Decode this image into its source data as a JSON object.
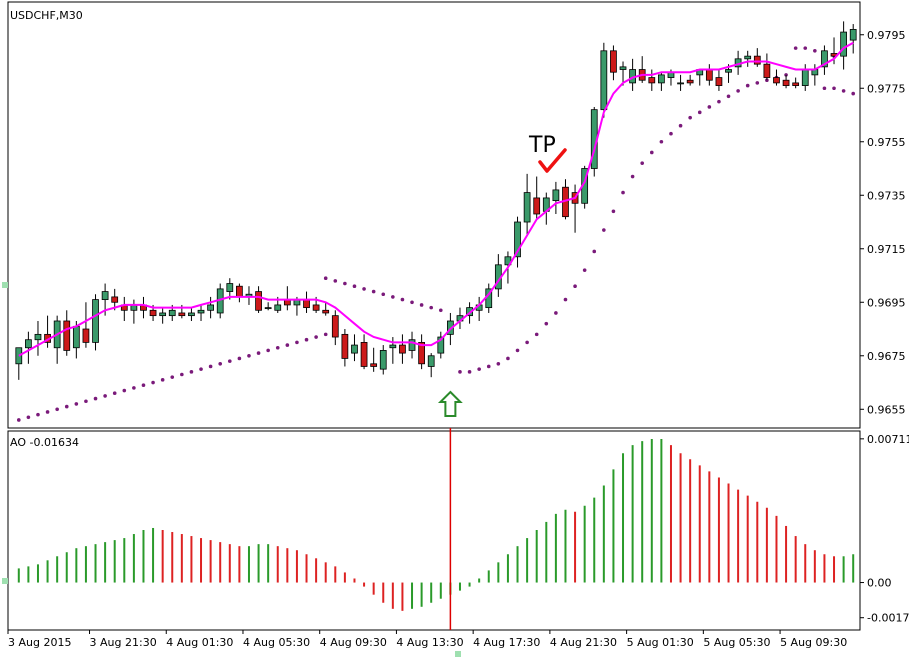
{
  "window": {
    "symbol_label": "USDCHF,M30"
  },
  "ao": {
    "label": "AO -0.01634"
  },
  "annotations": {
    "tp_label": "TP"
  },
  "colors": {
    "bull_candle": "#3a9a6a",
    "bear_candle": "#cc1a1a",
    "candle_outline": "#000000",
    "ma_line": "#ff00ff",
    "sar_dots": "#7a1a7a",
    "ao_up": "#2a9a2a",
    "ao_down": "#dd2222",
    "vline": "#dd0000",
    "arrow": "#2a8a2a",
    "check": "#ee1111"
  },
  "chart_data": [
    {
      "type": "candlestick",
      "title": "USDCHF,M30",
      "y_ticks": [
        "0.9795",
        "0.9775",
        "0.9755",
        "0.9735",
        "0.9715",
        "0.9695",
        "0.9675",
        "0.9655"
      ],
      "ylim": [
        0.9648,
        0.9805
      ],
      "x_ticks": [
        "3 Aug 2015",
        "3 Aug 21:30",
        "4 Aug 01:30",
        "4 Aug 05:30",
        "4 Aug 09:30",
        "4 Aug 13:30",
        "4 Aug 17:30",
        "4 Aug 21:30",
        "5 Aug 01:30",
        "5 Aug 05:30",
        "5 Aug 09:30"
      ],
      "ohlc": [
        [
          0.9672,
          0.9678,
          0.9666,
          0.9678
        ],
        [
          0.9678,
          0.9684,
          0.9672,
          0.9681
        ],
        [
          0.9681,
          0.9688,
          0.9675,
          0.9683
        ],
        [
          0.9683,
          0.969,
          0.9678,
          0.968
        ],
        [
          0.9678,
          0.969,
          0.9672,
          0.9688
        ],
        [
          0.9688,
          0.9692,
          0.9675,
          0.9677
        ],
        [
          0.9678,
          0.9688,
          0.9674,
          0.9686
        ],
        [
          0.9685,
          0.9695,
          0.9678,
          0.968
        ],
        [
          0.968,
          0.9698,
          0.9677,
          0.9696
        ],
        [
          0.9696,
          0.9702,
          0.969,
          0.9699
        ],
        [
          0.9697,
          0.97,
          0.9692,
          0.9695
        ],
        [
          0.9694,
          0.9697,
          0.9688,
          0.9692
        ],
        [
          0.9692,
          0.9696,
          0.9687,
          0.9694
        ],
        [
          0.9694,
          0.9697,
          0.9689,
          0.9692
        ],
        [
          0.9692,
          0.9694,
          0.9688,
          0.969
        ],
        [
          0.969,
          0.9693,
          0.9687,
          0.9691
        ],
        [
          0.969,
          0.9694,
          0.9688,
          0.9692
        ],
        [
          0.9691,
          0.9694,
          0.9689,
          0.969
        ],
        [
          0.969,
          0.9693,
          0.9688,
          0.9691
        ],
        [
          0.9691,
          0.9694,
          0.9688,
          0.9692
        ],
        [
          0.9692,
          0.9697,
          0.9689,
          0.9694
        ],
        [
          0.9691,
          0.9702,
          0.9689,
          0.97
        ],
        [
          0.9699,
          0.9704,
          0.9696,
          0.9702
        ],
        [
          0.9701,
          0.9702,
          0.9695,
          0.9697
        ],
        [
          0.9697,
          0.9701,
          0.9694,
          0.9698
        ],
        [
          0.9699,
          0.9701,
          0.9691,
          0.9692
        ],
        [
          0.9693,
          0.9695,
          0.9692,
          0.9693
        ],
        [
          0.9692,
          0.9697,
          0.9691,
          0.9694
        ],
        [
          0.9696,
          0.9701,
          0.9692,
          0.9694
        ],
        [
          0.9694,
          0.9697,
          0.969,
          0.9696
        ],
        [
          0.9696,
          0.9699,
          0.9691,
          0.9693
        ],
        [
          0.9694,
          0.9697,
          0.9691,
          0.9692
        ],
        [
          0.9692,
          0.9695,
          0.969,
          0.9691
        ],
        [
          0.969,
          0.9692,
          0.9679,
          0.9682
        ],
        [
          0.9683,
          0.9685,
          0.9671,
          0.9674
        ],
        [
          0.9676,
          0.9683,
          0.9673,
          0.9679
        ],
        [
          0.968,
          0.9683,
          0.967,
          0.9671
        ],
        [
          0.9672,
          0.9678,
          0.9669,
          0.9671
        ],
        [
          0.967,
          0.9679,
          0.9668,
          0.9677
        ],
        [
          0.9678,
          0.9682,
          0.9672,
          0.9679
        ],
        [
          0.9679,
          0.9683,
          0.9672,
          0.9676
        ],
        [
          0.9677,
          0.9684,
          0.9674,
          0.9681
        ],
        [
          0.968,
          0.9683,
          0.967,
          0.9672
        ],
        [
          0.9671,
          0.9676,
          0.9667,
          0.9675
        ],
        [
          0.9676,
          0.9684,
          0.9674,
          0.9682
        ],
        [
          0.9683,
          0.9691,
          0.9679,
          0.9688
        ],
        [
          0.9688,
          0.9693,
          0.9685,
          0.969
        ],
        [
          0.969,
          0.9695,
          0.9687,
          0.9693
        ],
        [
          0.9692,
          0.9697,
          0.9688,
          0.9694
        ],
        [
          0.9693,
          0.9702,
          0.9691,
          0.97
        ],
        [
          0.97,
          0.9713,
          0.9697,
          0.9709
        ],
        [
          0.9709,
          0.9714,
          0.9702,
          0.9712
        ],
        [
          0.9712,
          0.9727,
          0.9708,
          0.9725
        ],
        [
          0.9725,
          0.9743,
          0.972,
          0.9736
        ],
        [
          0.9734,
          0.9742,
          0.9726,
          0.9728
        ],
        [
          0.9729,
          0.9736,
          0.9724,
          0.9734
        ],
        [
          0.9733,
          0.974,
          0.9728,
          0.9737
        ],
        [
          0.9738,
          0.9741,
          0.9726,
          0.9727
        ],
        [
          0.9736,
          0.9739,
          0.9721,
          0.9732
        ],
        [
          0.9732,
          0.9746,
          0.973,
          0.9745
        ],
        [
          0.9745,
          0.9768,
          0.9742,
          0.9767
        ],
        [
          0.9767,
          0.9792,
          0.9764,
          0.9789
        ],
        [
          0.9789,
          0.9791,
          0.9778,
          0.9781
        ],
        [
          0.9782,
          0.9785,
          0.9776,
          0.9783
        ],
        [
          0.9777,
          0.9786,
          0.9774,
          0.9782
        ],
        [
          0.9782,
          0.9787,
          0.9777,
          0.9778
        ],
        [
          0.9779,
          0.9782,
          0.9774,
          0.9777
        ],
        [
          0.9777,
          0.9781,
          0.9774,
          0.978
        ],
        [
          0.9779,
          0.9782,
          0.9776,
          0.9781
        ],
        [
          0.9777,
          0.978,
          0.9774,
          0.9777
        ],
        [
          0.9778,
          0.978,
          0.9776,
          0.9777
        ],
        [
          0.978,
          0.9782,
          0.9776,
          0.9782
        ],
        [
          0.9782,
          0.9784,
          0.9776,
          0.9778
        ],
        [
          0.9779,
          0.9782,
          0.9774,
          0.9776
        ],
        [
          0.9781,
          0.9784,
          0.9777,
          0.9782
        ],
        [
          0.9783,
          0.9789,
          0.978,
          0.9786
        ],
        [
          0.9786,
          0.9789,
          0.9783,
          0.9787
        ],
        [
          0.9787,
          0.979,
          0.9783,
          0.9784
        ],
        [
          0.9784,
          0.9788,
          0.9778,
          0.9779
        ],
        [
          0.9779,
          0.9782,
          0.9776,
          0.9777
        ],
        [
          0.9778,
          0.978,
          0.9775,
          0.9776
        ],
        [
          0.9777,
          0.9779,
          0.9775,
          0.9776
        ],
        [
          0.9776,
          0.9784,
          0.9774,
          0.9782
        ],
        [
          0.978,
          0.9784,
          0.9776,
          0.9782
        ],
        [
          0.9783,
          0.9791,
          0.978,
          0.9789
        ],
        [
          0.9788,
          0.9794,
          0.9784,
          0.9787
        ],
        [
          0.9787,
          0.98,
          0.9782,
          0.9796
        ],
        [
          0.9793,
          0.9799,
          0.9788,
          0.9797
        ]
      ],
      "moving_average": [
        0.9675,
        0.9677,
        0.9679,
        0.9681,
        0.9683,
        0.9685,
        0.9686,
        0.9688,
        0.969,
        0.9692,
        0.9693,
        0.9694,
        0.9694,
        0.9694,
        0.9693,
        0.9693,
        0.9693,
        0.9693,
        0.9693,
        0.9694,
        0.9695,
        0.9696,
        0.9697,
        0.9697,
        0.9697,
        0.9697,
        0.9696,
        0.9696,
        0.9696,
        0.9696,
        0.9696,
        0.9696,
        0.9695,
        0.9693,
        0.969,
        0.9687,
        0.9684,
        0.9682,
        0.9681,
        0.968,
        0.968,
        0.968,
        0.9679,
        0.9679,
        0.9681,
        0.9685,
        0.9688,
        0.9691,
        0.9694,
        0.9698,
        0.9703,
        0.9708,
        0.9714,
        0.972,
        0.9726,
        0.9729,
        0.9732,
        0.9733,
        0.9734,
        0.974,
        0.9752,
        0.9766,
        0.9773,
        0.9777,
        0.9779,
        0.978,
        0.978,
        0.9781,
        0.9781,
        0.9781,
        0.9781,
        0.9782,
        0.9782,
        0.9782,
        0.9783,
        0.9784,
        0.9785,
        0.9785,
        0.9785,
        0.9784,
        0.9783,
        0.9782,
        0.9782,
        0.9782,
        0.9784,
        0.9786,
        0.979,
        0.9792
      ],
      "parabolic_sar": [
        [
          0,
          0.9651
        ],
        [
          1,
          0.9652
        ],
        [
          2,
          0.9653
        ],
        [
          3,
          0.9654
        ],
        [
          4,
          0.9655
        ],
        [
          5,
          0.9656
        ],
        [
          6,
          0.9657
        ],
        [
          7,
          0.9658
        ],
        [
          8,
          0.9659
        ],
        [
          9,
          0.966
        ],
        [
          10,
          0.9661
        ],
        [
          11,
          0.9662
        ],
        [
          12,
          0.9663
        ],
        [
          13,
          0.9664
        ],
        [
          14,
          0.9665
        ],
        [
          15,
          0.9666
        ],
        [
          16,
          0.9667
        ],
        [
          17,
          0.9668
        ],
        [
          18,
          0.9669
        ],
        [
          19,
          0.967
        ],
        [
          20,
          0.9671
        ],
        [
          21,
          0.9672
        ],
        [
          22,
          0.9673
        ],
        [
          23,
          0.9674
        ],
        [
          24,
          0.9675
        ],
        [
          25,
          0.9676
        ],
        [
          26,
          0.9677
        ],
        [
          27,
          0.9678
        ],
        [
          28,
          0.9679
        ],
        [
          29,
          0.968
        ],
        [
          30,
          0.9681
        ],
        [
          31,
          0.9682
        ],
        [
          32,
          0.9683
        ],
        [
          32,
          0.9704
        ],
        [
          33,
          0.9703
        ],
        [
          34,
          0.9702
        ],
        [
          35,
          0.9701
        ],
        [
          36,
          0.97
        ],
        [
          37,
          0.9699
        ],
        [
          38,
          0.9698
        ],
        [
          39,
          0.9697
        ],
        [
          40,
          0.9696
        ],
        [
          41,
          0.9695
        ],
        [
          42,
          0.9694
        ],
        [
          43,
          0.9693
        ],
        [
          44,
          0.9692
        ],
        [
          46,
          0.9669
        ],
        [
          47,
          0.9669
        ],
        [
          48,
          0.967
        ],
        [
          49,
          0.9671
        ],
        [
          50,
          0.9672
        ],
        [
          51,
          0.9674
        ],
        [
          52,
          0.9677
        ],
        [
          53,
          0.968
        ],
        [
          54,
          0.9683
        ],
        [
          55,
          0.9687
        ],
        [
          56,
          0.9691
        ],
        [
          57,
          0.9696
        ],
        [
          58,
          0.9701
        ],
        [
          59,
          0.9707
        ],
        [
          60,
          0.9714
        ],
        [
          61,
          0.9722
        ],
        [
          62,
          0.9729
        ],
        [
          63,
          0.9736
        ],
        [
          64,
          0.9742
        ],
        [
          65,
          0.9747
        ],
        [
          66,
          0.9751
        ],
        [
          67,
          0.9755
        ],
        [
          68,
          0.9758
        ],
        [
          69,
          0.9761
        ],
        [
          70,
          0.9764
        ],
        [
          71,
          0.9766
        ],
        [
          72,
          0.9768
        ],
        [
          73,
          0.977
        ],
        [
          74,
          0.9772
        ],
        [
          75,
          0.9774
        ],
        [
          76,
          0.9776
        ],
        [
          77,
          0.9777
        ],
        [
          78,
          0.9778
        ],
        [
          79,
          0.9779
        ],
        [
          80,
          0.978
        ],
        [
          81,
          0.979
        ],
        [
          82,
          0.979
        ],
        [
          83,
          0.9789
        ],
        [
          84,
          0.9788
        ],
        [
          85,
          0.9787
        ],
        [
          84,
          0.9775
        ],
        [
          85,
          0.9775
        ],
        [
          86,
          0.9774
        ],
        [
          87,
          0.9773
        ]
      ]
    },
    {
      "type": "bar",
      "title": "AO -0.01634",
      "y_ticks": [
        "0.00711",
        "0.00",
        "-0.00174"
      ],
      "ylim": [
        -0.00215,
        0.0073
      ],
      "values": [
        0.0007,
        0.0008,
        0.0009,
        0.0011,
        0.0013,
        0.0015,
        0.0017,
        0.0018,
        0.0019,
        0.002,
        0.0021,
        0.0022,
        0.0024,
        0.0026,
        0.0027,
        0.0026,
        0.0025,
        0.0024,
        0.0023,
        0.0022,
        0.0021,
        0.002,
        0.0019,
        0.0018,
        0.0018,
        0.0019,
        0.0019,
        0.0018,
        0.0017,
        0.0016,
        0.0014,
        0.0012,
        0.001,
        0.0008,
        0.0005,
        0.0002,
        -0.0002,
        -0.0006,
        -0.001,
        -0.0013,
        -0.0014,
        -0.0013,
        -0.0012,
        -0.001,
        -0.0008,
        -0.0006,
        -0.0004,
        -0.0002,
        0.0002,
        0.0006,
        0.001,
        0.0014,
        0.0018,
        0.0022,
        0.0026,
        0.003,
        0.0034,
        0.0036,
        0.0035,
        0.0038,
        0.0042,
        0.0048,
        0.0056,
        0.0064,
        0.0068,
        0.007,
        0.0071,
        0.0071,
        0.0068,
        0.0064,
        0.0061,
        0.0058,
        0.0055,
        0.0052,
        0.0049,
        0.0046,
        0.0043,
        0.004,
        0.0037,
        0.0033,
        0.0028,
        0.0023,
        0.0019,
        0.0016,
        0.0014,
        0.0013,
        0.0013,
        0.0014
      ]
    }
  ]
}
